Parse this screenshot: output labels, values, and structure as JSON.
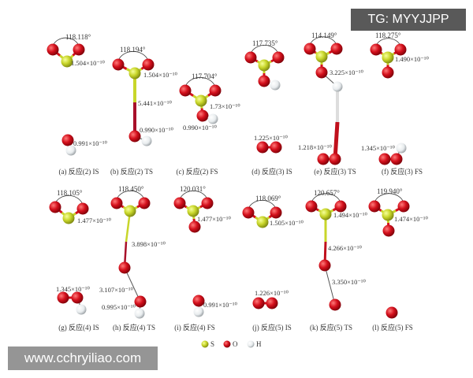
{
  "watermark_top": "TG: MYYJJPP",
  "watermark_bottom": "www.cchryiliao.com",
  "colors": {
    "S": "#c8d62a",
    "O": "#d4101c",
    "H": "#e8ecee"
  },
  "panels": [
    {
      "caption": "(a) 反应(2) IS",
      "angle": "118.118°",
      "labels": [
        "1.504×10⁻¹⁰",
        "0.991×10⁻¹⁰"
      ]
    },
    {
      "caption": "(b) 反应(2) TS",
      "angle": "118.194°",
      "labels": [
        "1.504×10⁻¹⁰",
        "5.441×10⁻¹⁰",
        "0.990×10⁻¹⁰"
      ]
    },
    {
      "caption": "(c) 反应(2) FS",
      "angle": "117.704°",
      "labels": [
        "1.73×10⁻¹⁰",
        "0.990×10⁻¹⁰"
      ]
    },
    {
      "caption": "(d) 反应(3) IS",
      "angle": "117.735°",
      "labels": [
        "1.225×10⁻¹⁰"
      ]
    },
    {
      "caption": "(e) 反应(3) TS",
      "angle": "114.149°",
      "labels": [
        "3.225×10⁻¹⁰",
        "1.218×10⁻¹⁰"
      ]
    },
    {
      "caption": "(f) 反应(3) FS",
      "angle": "118.275°",
      "labels": [
        "1.490×10⁻¹⁰",
        "1.345×10⁻¹⁰"
      ]
    },
    {
      "caption": "(g) 反应(4) IS",
      "angle": "118.105°",
      "labels": [
        "1.477×10⁻¹⁰",
        "1.345×10⁻¹⁰"
      ]
    },
    {
      "caption": "(h) 反应(4) TS",
      "angle": "118.450°",
      "labels": [
        "3.898×10⁻¹⁰",
        "3.107×10⁻¹⁰",
        "0.995×10⁻¹⁰"
      ]
    },
    {
      "caption": "(i) 反应(4) FS",
      "angle": "120.031°",
      "labels": [
        "1.477×10⁻¹⁰",
        "0.991×10⁻¹⁰"
      ]
    },
    {
      "caption": "(j) 反应(5) IS",
      "angle": "118.069°",
      "labels": [
        "1.505×10⁻¹⁰",
        "1.226×10⁻¹⁰"
      ]
    },
    {
      "caption": "(k) 反应(5) TS",
      "angle": "120.657°",
      "labels": [
        "1.494×10⁻¹⁰",
        "4.266×10⁻¹⁰",
        "3.350×10⁻¹⁰"
      ]
    },
    {
      "caption": "(l) 反应(5) FS",
      "angle": "119.940°",
      "labels": [
        "1.474×10⁻¹⁰"
      ]
    }
  ],
  "legend": [
    {
      "element": "S",
      "label": "S"
    },
    {
      "element": "O",
      "label": "O"
    },
    {
      "element": "H",
      "label": "H"
    }
  ]
}
